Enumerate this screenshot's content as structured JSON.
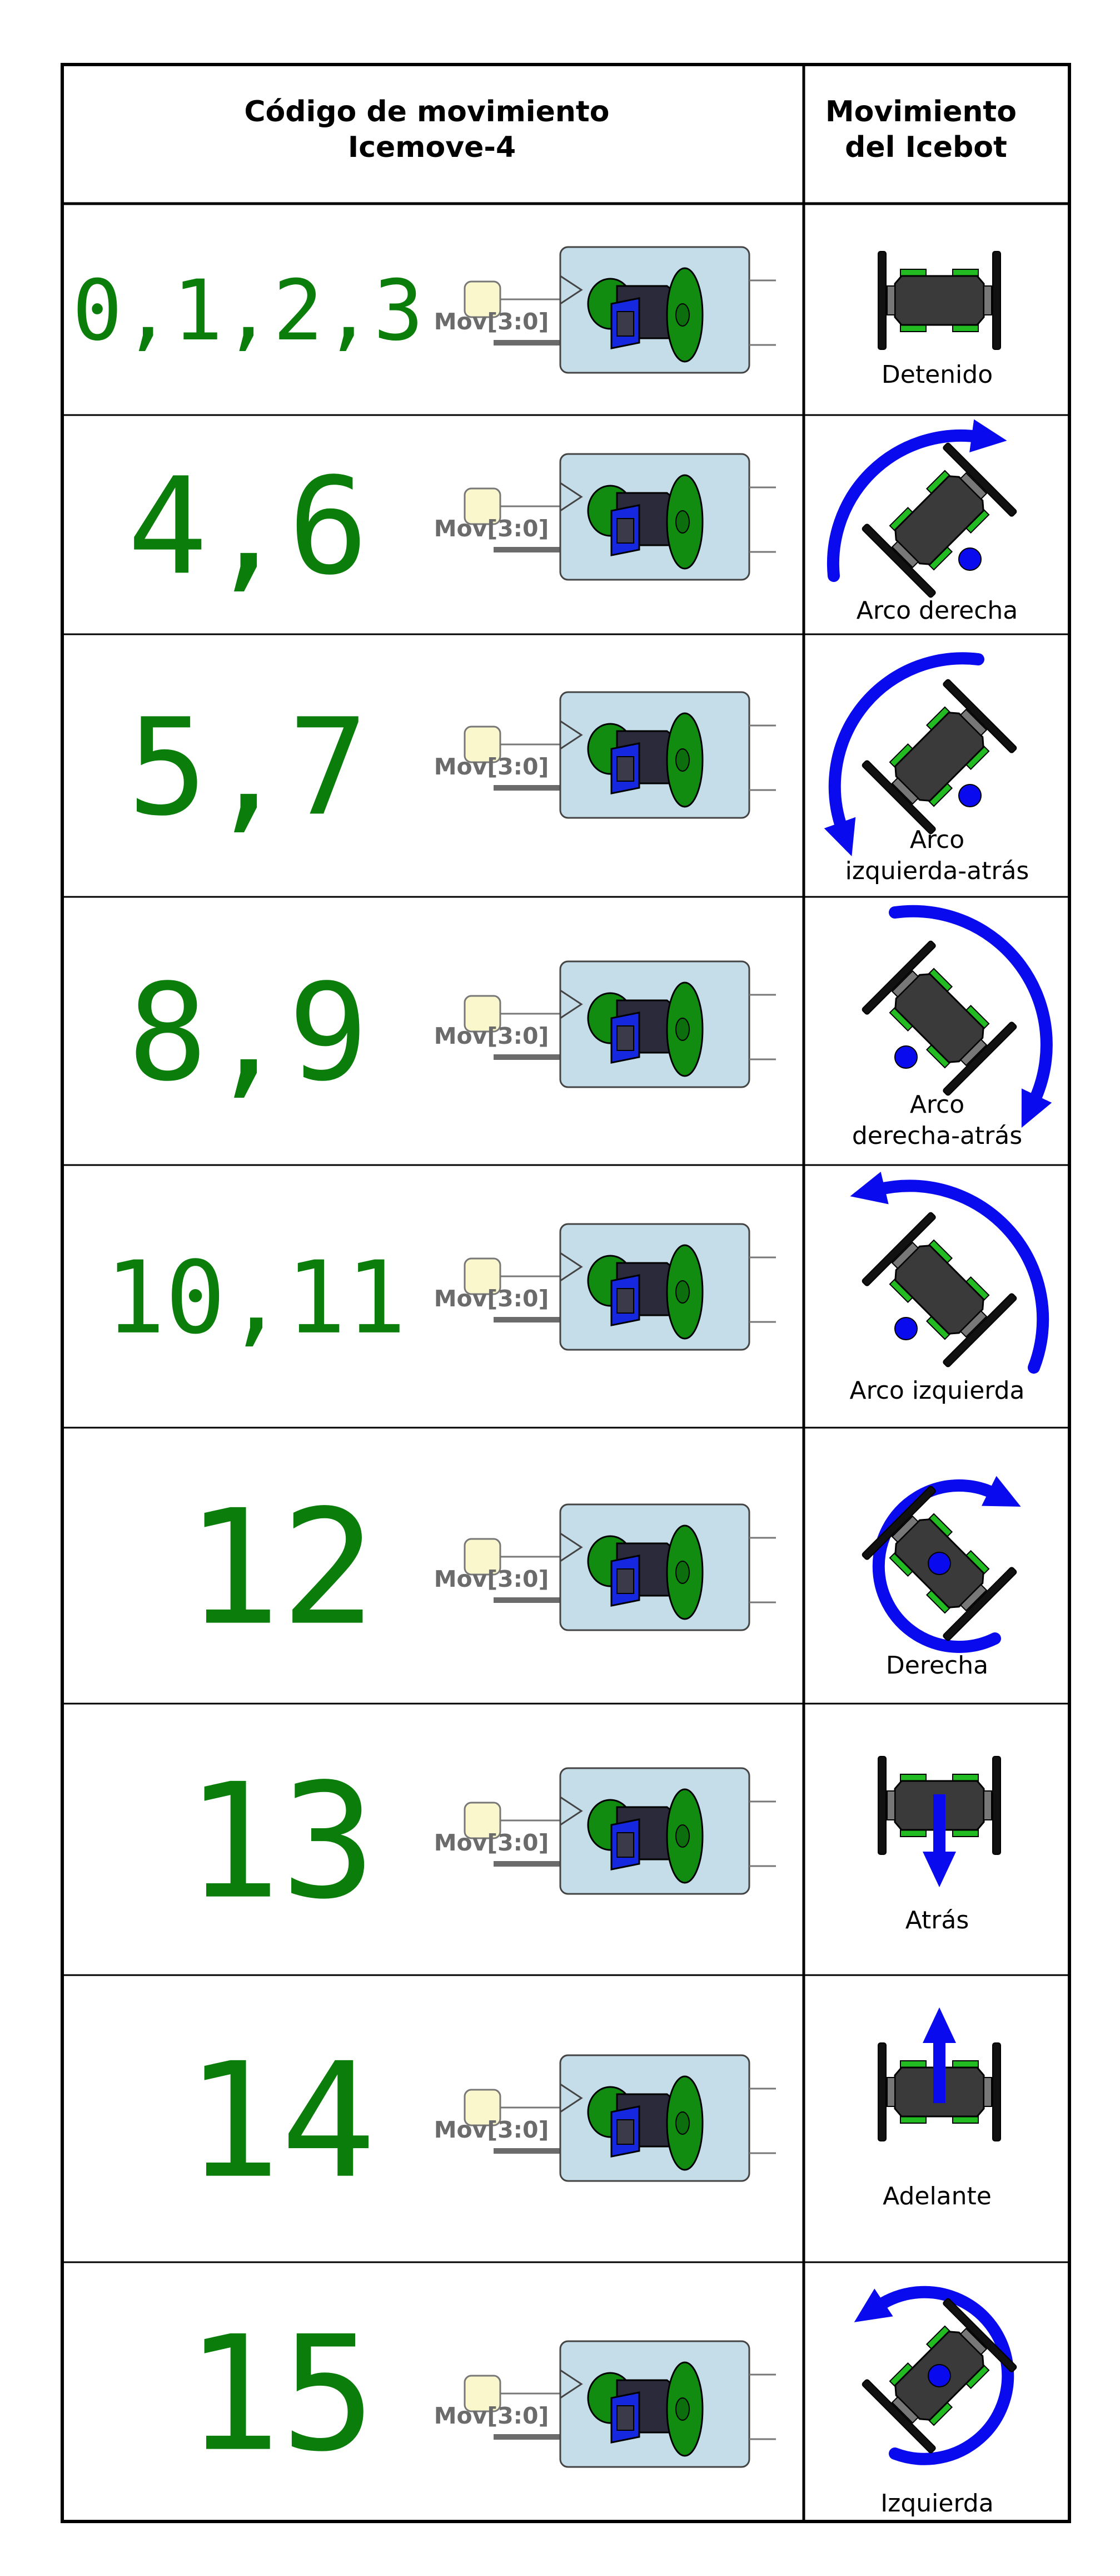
{
  "header": {
    "code_title": [
      "Código de movimiento",
      "Icemove-4"
    ],
    "motion_title": [
      "Movimiento",
      "del Icebot"
    ]
  },
  "block_label": "Mov[3:0]",
  "colors": {
    "code": "#0a7d0a",
    "arrow": "#0a0aee",
    "block": "#c5dde8",
    "wheel": "#118c11",
    "body": "#2a2a3a",
    "frame": "#1528e0",
    "input": "#fbf7cc"
  },
  "rows": [
    {
      "code": "0,1,2,3",
      "caption": [
        "Detenido"
      ],
      "motion": "stopped"
    },
    {
      "code": "4,6",
      "caption": [
        "Arco derecha"
      ],
      "motion": "arc-right"
    },
    {
      "code": "5,7",
      "caption": [
        "Arco",
        "izquierda-atrás"
      ],
      "motion": "arc-left-back"
    },
    {
      "code": "8,9",
      "caption": [
        "Arco",
        "derecha-atrás"
      ],
      "motion": "arc-right-back"
    },
    {
      "code": "10,11",
      "caption": [
        "Arco izquierda"
      ],
      "motion": "arc-left"
    },
    {
      "code": "12",
      "caption": [
        "Derecha"
      ],
      "motion": "spin-right"
    },
    {
      "code": "13",
      "caption": [
        "Atrás"
      ],
      "motion": "backward"
    },
    {
      "code": "14",
      "caption": [
        "Adelante"
      ],
      "motion": "forward"
    },
    {
      "code": "15",
      "caption": [
        "Izquierda"
      ],
      "motion": "spin-left"
    }
  ]
}
